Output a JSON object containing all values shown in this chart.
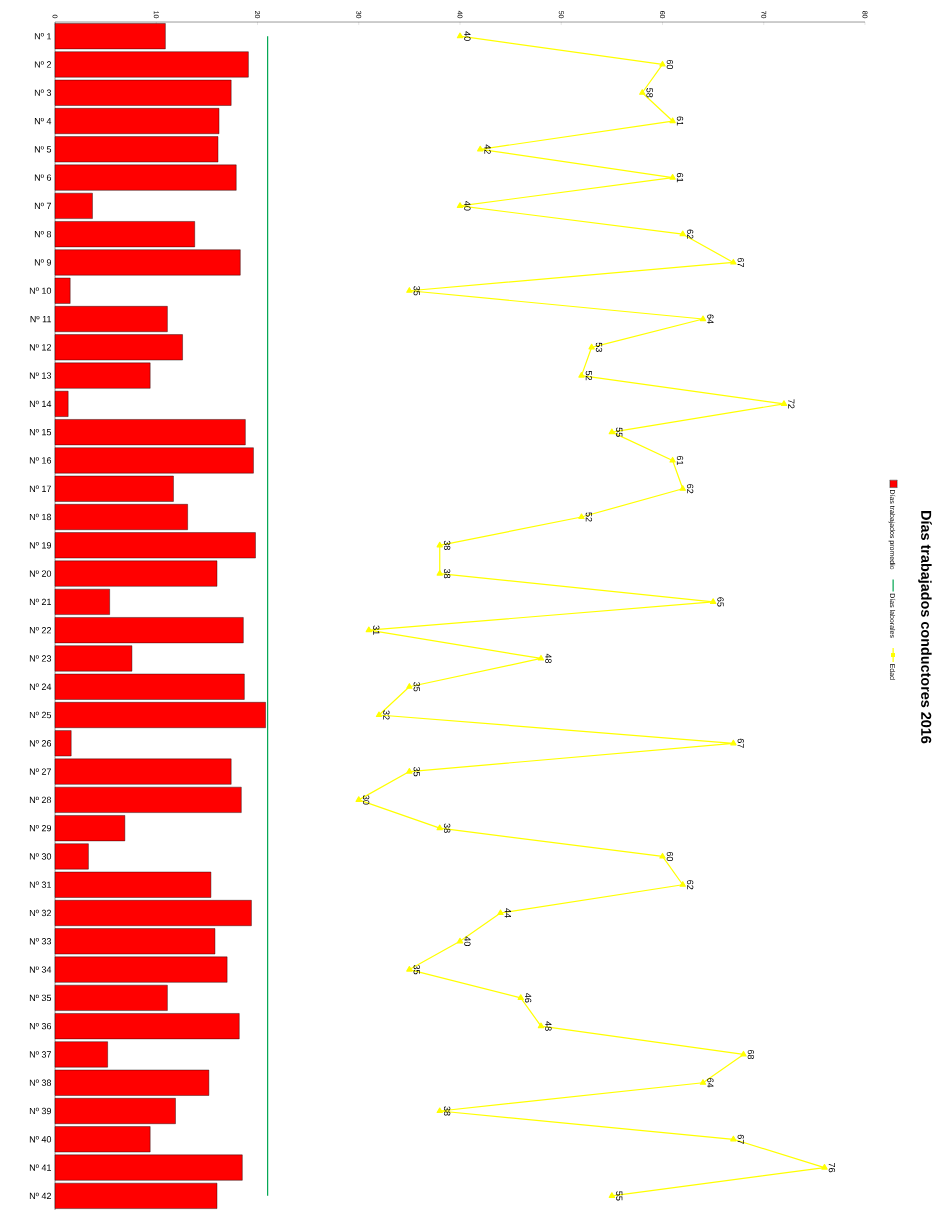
{
  "chart_data": {
    "type": "bar",
    "orientation": "horizontal",
    "title": "Días trabajados conductores 2016",
    "legend": "right",
    "categories": [
      "Nº 1",
      "Nº 2",
      "Nº 3",
      "Nº 4",
      "Nº 5",
      "Nº 6",
      "Nº 7",
      "Nº 8",
      "Nº 9",
      "Nº 10",
      "Nº 11",
      "Nº 12",
      "Nº 13",
      "Nº 14",
      "Nº 15",
      "Nº 16",
      "Nº 17",
      "Nº 18",
      "Nº 19",
      "Nº 20",
      "Nº 21",
      "Nº 22",
      "Nº 23",
      "Nº 24",
      "Nº 25",
      "Nº 26",
      "Nº 27",
      "Nº 28",
      "Nº 29",
      "Nº 30",
      "Nº 31",
      "Nº 32",
      "Nº 33",
      "Nº 34",
      "Nº 35",
      "Nº 36",
      "Nº 37",
      "Nº 38",
      "Nº 39",
      "Nº 40",
      "Nº 41",
      "Nº 42"
    ],
    "xlim": [
      0,
      80
    ],
    "xticks": [
      0,
      10,
      20,
      30,
      40,
      50,
      60,
      70,
      80
    ],
    "series": [
      {
        "name": "Días trabajados promedio",
        "color": "#ff0000",
        "values": [
          10.9,
          19.1,
          17.4,
          16.2,
          16.1,
          17.9,
          3.7,
          13.8,
          18.3,
          1.5,
          11.1,
          12.6,
          9.4,
          1.3,
          18.8,
          19.6,
          11.7,
          13.1,
          19.8,
          16.0,
          5.4,
          18.6,
          7.6,
          18.7,
          20.8,
          1.6,
          17.4,
          18.4,
          6.9,
          3.3,
          15.4,
          19.4,
          15.8,
          17.0,
          11.1,
          18.2,
          5.2,
          15.2,
          11.9,
          9.4,
          18.5,
          16.0
        ]
      },
      {
        "name": "Días laborales",
        "type": "line",
        "color": "#00a651",
        "marker": "none",
        "values": [
          21,
          21,
          21,
          21,
          21,
          21,
          21,
          21,
          21,
          21,
          21,
          21,
          21,
          21,
          21,
          21,
          21,
          21,
          21,
          21,
          21,
          21,
          21,
          21,
          21,
          21,
          21,
          21,
          21,
          21,
          21,
          21,
          21,
          21,
          21,
          21,
          21,
          21,
          21,
          21,
          21,
          21
        ]
      },
      {
        "name": "Edad",
        "type": "line",
        "color": "#ffff00",
        "marker": "triangle",
        "values": [
          40,
          60,
          58,
          61,
          42,
          61,
          40,
          62,
          67,
          35,
          64,
          53,
          52,
          72,
          55,
          61,
          62,
          52,
          38,
          38,
          65,
          31,
          48,
          35,
          32,
          67,
          35,
          30,
          38,
          60,
          62,
          44,
          40,
          35,
          46,
          48,
          68,
          64,
          38,
          67,
          76,
          55
        ],
        "value_labels": [
          "40",
          "60",
          "58",
          "61",
          "42",
          "61",
          "40",
          "62",
          "67",
          "35",
          "64",
          "53",
          "52",
          "72",
          "55",
          "61",
          "62",
          "52",
          "38",
          "38",
          "65",
          "31",
          "48",
          "35",
          "32",
          "67",
          "35",
          "30",
          "38",
          "60",
          "62",
          "44",
          "40",
          "35",
          "46",
          "48",
          "68",
          "64",
          "38",
          "67",
          "76",
          "55"
        ]
      }
    ]
  }
}
